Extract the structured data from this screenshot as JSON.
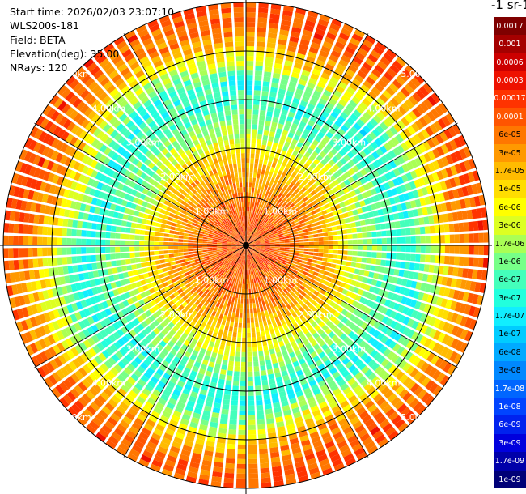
{
  "info": {
    "start_time": "Start time: 2026/02/03 23:07:10",
    "instrument": "WLS200s-181",
    "field": "Field: BETA",
    "elevation": "Elevation(deg): 35.00",
    "nrays": "NRays: 120"
  },
  "colorbar": {
    "title": "-1 sr-1",
    "entries": [
      {
        "label": "0.0017",
        "color": "#7f0000",
        "text_color": "#ffffff"
      },
      {
        "label": "0.001",
        "color": "#a50000",
        "text_color": "#ffffff"
      },
      {
        "label": "0.0006",
        "color": "#cc0000",
        "text_color": "#ffffff"
      },
      {
        "label": "0.0003",
        "color": "#ee1100",
        "text_color": "#ffffff"
      },
      {
        "label": "0.00017",
        "color": "#ff3300",
        "text_color": "#ffffff"
      },
      {
        "label": "0.0001",
        "color": "#ff5500",
        "text_color": "#ffffff"
      },
      {
        "label": "6e-05",
        "color": "#ff7700",
        "text_color": "#000000"
      },
      {
        "label": "3e-05",
        "color": "#ff9900",
        "text_color": "#000000"
      },
      {
        "label": "1.7e-05",
        "color": "#ffbb00",
        "text_color": "#000000"
      },
      {
        "label": "1e-05",
        "color": "#ffdd00",
        "text_color": "#000000"
      },
      {
        "label": "6e-06",
        "color": "#ffff00",
        "text_color": "#000000"
      },
      {
        "label": "3e-06",
        "color": "#ddff22",
        "text_color": "#000000"
      },
      {
        "label": "1.7e-06",
        "color": "#aaff55",
        "text_color": "#000000"
      },
      {
        "label": "1e-06",
        "color": "#77ff88",
        "text_color": "#000000"
      },
      {
        "label": "6e-07",
        "color": "#44ffbb",
        "text_color": "#000000"
      },
      {
        "label": "3e-07",
        "color": "#22ffdd",
        "text_color": "#000000"
      },
      {
        "label": "1.7e-07",
        "color": "#11eeff",
        "text_color": "#000000"
      },
      {
        "label": "1e-07",
        "color": "#00ccff",
        "text_color": "#000000"
      },
      {
        "label": "6e-08",
        "color": "#00aaff",
        "text_color": "#000000"
      },
      {
        "label": "3e-08",
        "color": "#0088ff",
        "text_color": "#000000"
      },
      {
        "label": "1.7e-08",
        "color": "#0066ff",
        "text_color": "#ffffff"
      },
      {
        "label": "1e-08",
        "color": "#0044ff",
        "text_color": "#ffffff"
      },
      {
        "label": "6e-09",
        "color": "#0022ee",
        "text_color": "#ffffff"
      },
      {
        "label": "3e-09",
        "color": "#0000dd",
        "text_color": "#ffffff"
      },
      {
        "label": "1.7e-09",
        "color": "#0000aa",
        "text_color": "#ffffff"
      },
      {
        "label": "1e-09",
        "color": "#000077",
        "text_color": "#ffffff"
      }
    ]
  },
  "range_rings": {
    "ring_labels": [
      "1.00km",
      "2.00km",
      "3.00km",
      "4.00km",
      "5.00km"
    ],
    "label_color": "#ffffff"
  },
  "chart_data": {
    "type": "ppi",
    "field": "BETA",
    "nrays": 120,
    "elevation_deg": 35.0,
    "range_rings_km": [
      1,
      2,
      3,
      4,
      5
    ],
    "max_range_km": 5.0,
    "radial_profile": [
      {
        "range_km": 0.0,
        "bin": 20
      },
      {
        "range_km": 0.5,
        "bin": 20
      },
      {
        "range_km": 1.0,
        "bin": 19
      },
      {
        "range_km": 1.5,
        "bin": 18
      },
      {
        "range_km": 2.0,
        "bin": 16
      },
      {
        "range_km": 2.5,
        "bin": 13
      },
      {
        "range_km": 3.0,
        "bin": 11
      },
      {
        "range_km": 3.5,
        "bin": 10
      },
      {
        "range_km": 4.0,
        "bin": 14
      },
      {
        "range_km": 4.5,
        "bin": 18
      },
      {
        "range_km": 5.0,
        "bin": 20
      }
    ]
  }
}
